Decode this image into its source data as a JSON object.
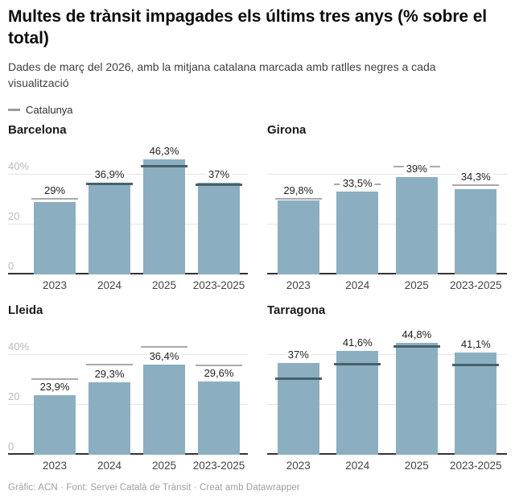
{
  "header": {
    "title": "Multes de trànsit impagades els últims tres anys (% sobre el total)",
    "subtitle": "Dades de març del 2026, amb la mitjana catalana marcada amb ratlles negres a cada visualització",
    "legend": {
      "label": "Catalunya",
      "dash_color": "#9a9a9a"
    }
  },
  "chart_data": {
    "type": "bar",
    "layout": "small-multiples-2x2",
    "categories": [
      "2023",
      "2024",
      "2025",
      "2023-2025"
    ],
    "panels": [
      {
        "title": "Barcelona",
        "values": [
          29,
          36.9,
          46.3,
          37
        ],
        "labels": [
          "29%",
          "36,9%",
          "46,3%",
          "37%"
        ],
        "show_y_axis": true
      },
      {
        "title": "Girona",
        "values": [
          29.8,
          33.5,
          39,
          34.3
        ],
        "labels": [
          "29,8%",
          "33,5%",
          "39%",
          "34,3%"
        ],
        "show_y_axis": false
      },
      {
        "title": "Lleida",
        "values": [
          23.9,
          29.3,
          36.4,
          29.6
        ],
        "labels": [
          "23,9%",
          "29,3%",
          "36,4%",
          "29,6%"
        ],
        "show_y_axis": true
      },
      {
        "title": "Tarragona",
        "values": [
          37,
          41.6,
          44.8,
          41.1
        ],
        "labels": [
          "37%",
          "41,6%",
          "44,8%",
          "41,1%"
        ],
        "show_y_axis": false
      }
    ],
    "reference_series": {
      "name": "Catalunya",
      "values": [
        30.3,
        36.3,
        43.5,
        36
      ],
      "estimated_from_gridlines": true
    },
    "y_ticks": [
      {
        "value": 0,
        "label": "0"
      },
      {
        "value": 20,
        "label": "20"
      },
      {
        "value": 40,
        "label": "40%"
      }
    ],
    "ylim": [
      0,
      53
    ],
    "grid": true,
    "bar_color": "#8bafc0",
    "marker_color_over_bar": "#47606c",
    "marker_color_over_background": "#aaaaaa",
    "gridline_color": "#e4e4e4",
    "axis_color": "#333333"
  },
  "footer": {
    "text": "Gràfic: ACN · Font: Servei Català de Trànsit · Creat amb Datawrapper"
  }
}
